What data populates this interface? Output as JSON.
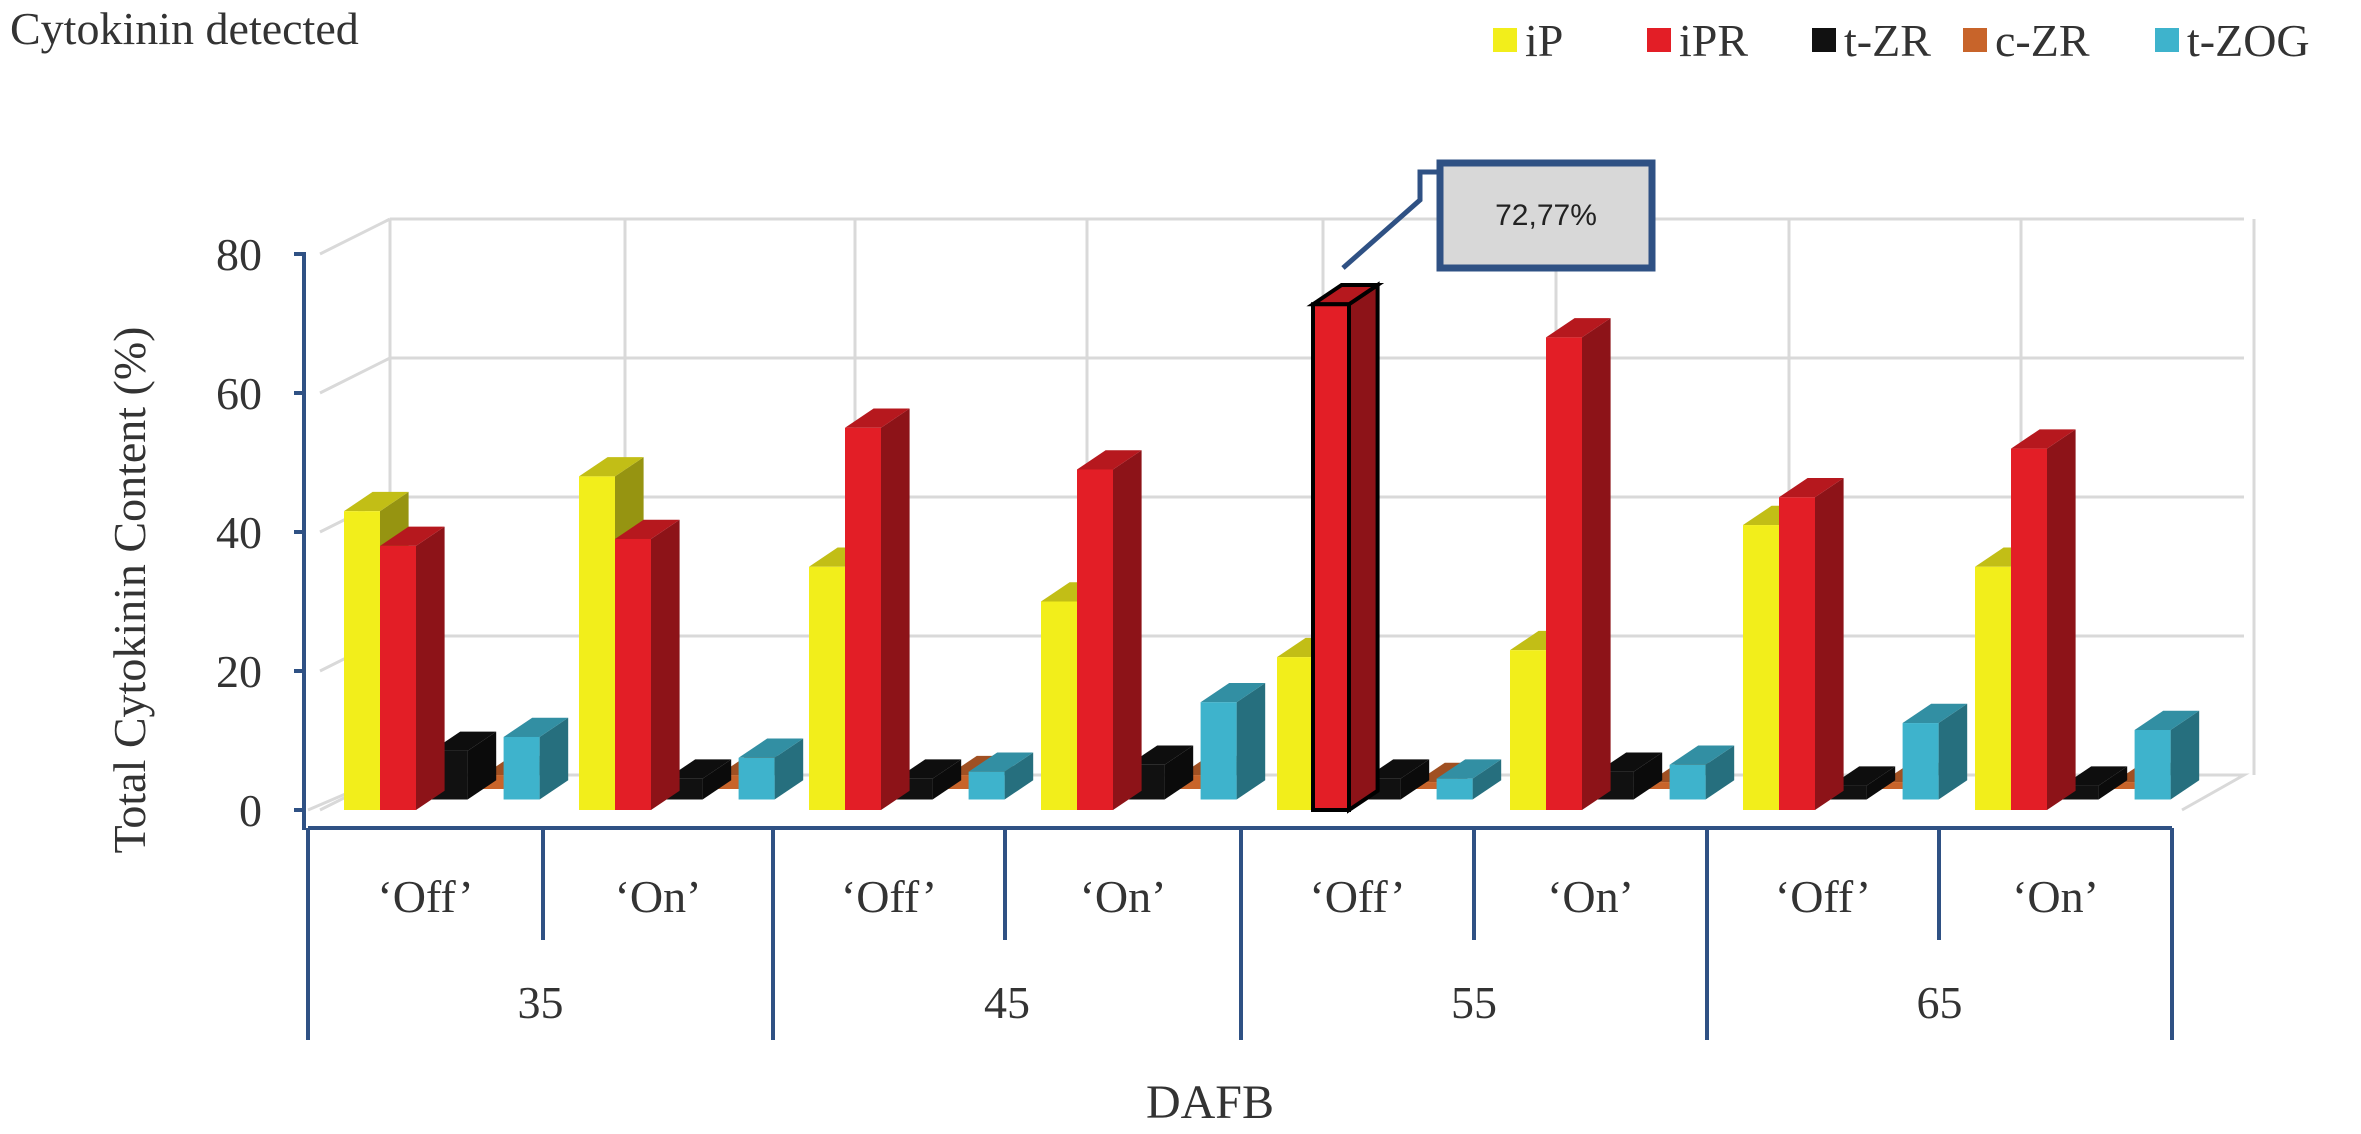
{
  "chart_data": {
    "type": "bar",
    "title": "Cytokinin detected",
    "ylabel": "Total Cytokinin Content (%)",
    "xlabel": "DAFB",
    "ylim": [
      0,
      80
    ],
    "yticks": [
      "0",
      "20",
      "40",
      "60",
      "80"
    ],
    "grid": true,
    "legend_position": "top-right",
    "groups": [
      "35",
      "45",
      "55",
      "65"
    ],
    "categories": [
      "‘Off’",
      "‘On’",
      "‘Off’",
      "‘On’",
      "‘Off’",
      "‘On’",
      "‘Off’",
      "‘On’"
    ],
    "series": [
      {
        "name": "iP",
        "color": "#f2ee1b",
        "values": [
          43,
          48,
          35,
          30,
          22,
          23,
          41,
          35
        ]
      },
      {
        "name": "iPR",
        "color": "#e31e26",
        "values": [
          38,
          39,
          55,
          49,
          72.77,
          68,
          45,
          52
        ]
      },
      {
        "name": "t-ZR",
        "color": "#111111",
        "values": [
          7,
          3,
          3,
          5,
          3,
          4,
          2,
          2
        ]
      },
      {
        "name": "c-ZR",
        "color": "#c8642a",
        "values": [
          2,
          2,
          2,
          2,
          1,
          1,
          1,
          1
        ]
      },
      {
        "name": "t-ZOG",
        "color": "#3eb3cc",
        "values": [
          9,
          6,
          4,
          14,
          3,
          5,
          11,
          10
        ]
      }
    ],
    "annotation": {
      "text": "72,77%",
      "group": 4,
      "series": "iPR"
    }
  }
}
